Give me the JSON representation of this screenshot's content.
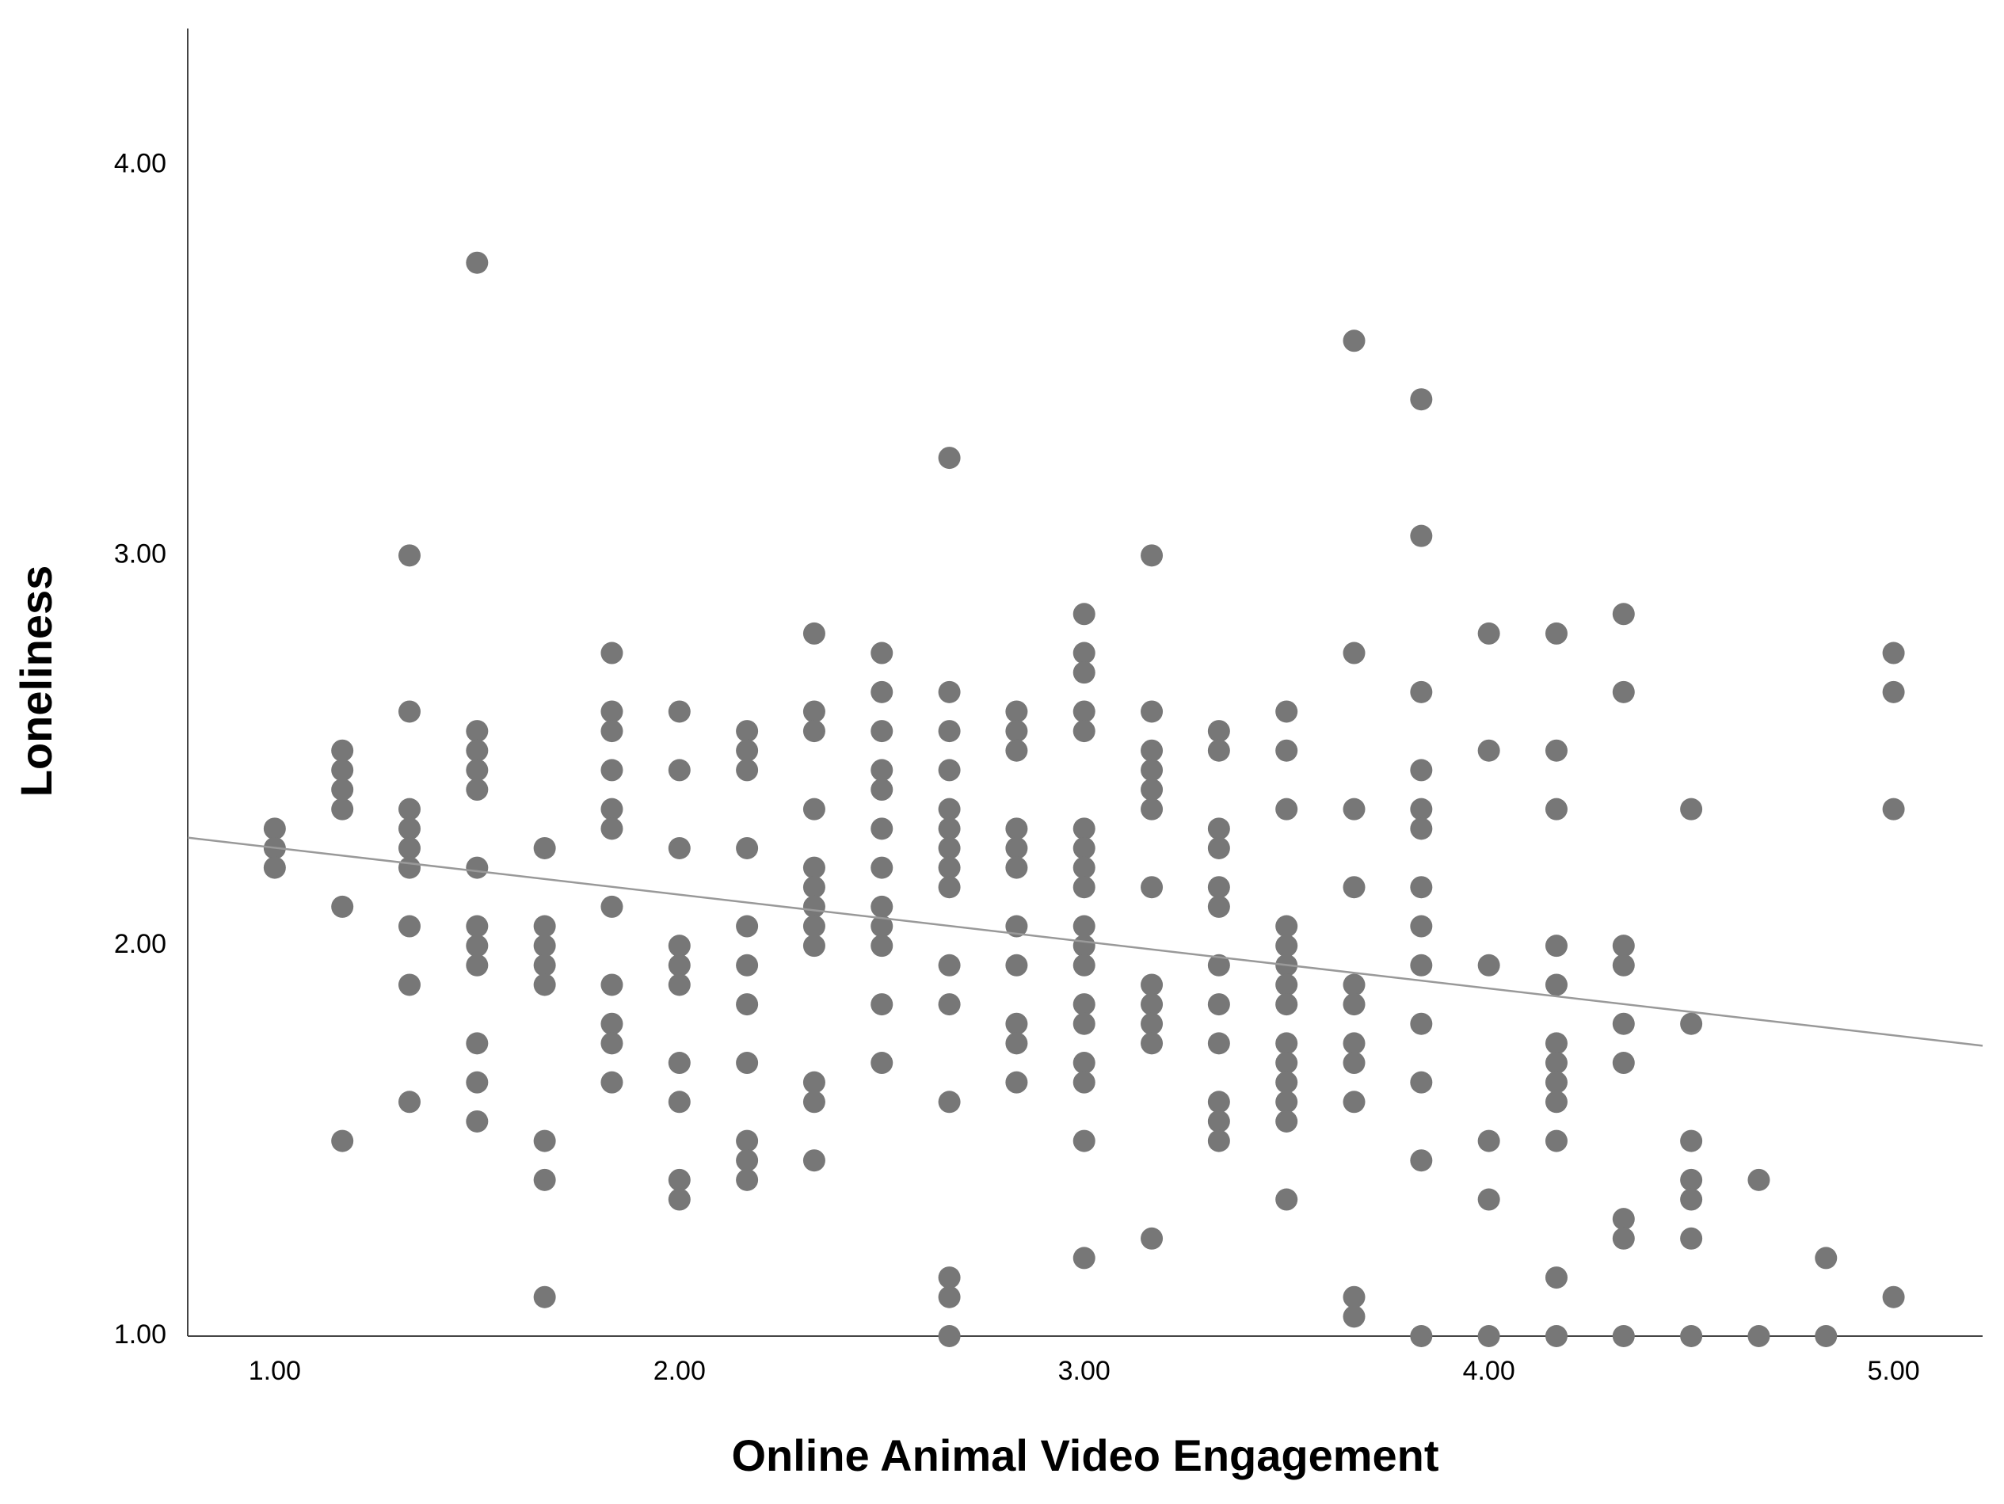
{
  "chart_data": {
    "type": "scatter",
    "xlabel": "Online Animal Video Engagement",
    "ylabel": "Loneliness",
    "color": "#777777",
    "trend_color": "#999999",
    "grid": false,
    "xlim": [
      0.785,
      5.22
    ],
    "ylim": [
      1,
      4.35
    ],
    "xticks": [
      {
        "value": 1,
        "label": "1.00"
      },
      {
        "value": 2,
        "label": "2.00"
      },
      {
        "value": 3,
        "label": "3.00"
      },
      {
        "value": 4,
        "label": "4.00"
      },
      {
        "value": 5,
        "label": "5.00"
      }
    ],
    "yticks": [
      {
        "value": 1,
        "label": "1.00"
      },
      {
        "value": 2,
        "label": "2.00"
      },
      {
        "value": 3,
        "label": "3.00"
      },
      {
        "value": 4,
        "label": "4.00"
      }
    ],
    "trend_line": {
      "x": [
        0.785,
        5.22
      ],
      "y": [
        2.277,
        1.744
      ]
    },
    "x": [
      1,
      1,
      1,
      1.167,
      1.167,
      1.167,
      1.167,
      1.167,
      1.167,
      1.333,
      1.333,
      1.333,
      1.333,
      1.333,
      1.333,
      1.333,
      1.333,
      1.333,
      1.5,
      1.5,
      1.5,
      1.5,
      1.5,
      1.5,
      1.5,
      1.5,
      1.5,
      1.5,
      1.5,
      1.5,
      1.667,
      1.667,
      1.667,
      1.667,
      1.667,
      1.667,
      1.667,
      1.667,
      1.833,
      1.833,
      1.833,
      1.833,
      1.833,
      1.833,
      1.833,
      1.833,
      1.833,
      1.833,
      1.833,
      2,
      2,
      2,
      2,
      2,
      2,
      2,
      2,
      2,
      2,
      2.167,
      2.167,
      2.167,
      2.167,
      2.167,
      2.167,
      2.167,
      2.167,
      2.167,
      2.167,
      2.167,
      2.333,
      2.333,
      2.333,
      2.333,
      2.333,
      2.333,
      2.333,
      2.333,
      2.333,
      2.333,
      2.333,
      2.333,
      2.5,
      2.5,
      2.5,
      2.5,
      2.5,
      2.5,
      2.5,
      2.5,
      2.5,
      2.5,
      2.5,
      2.5,
      2.667,
      2.667,
      2.667,
      2.667,
      2.667,
      2.667,
      2.667,
      2.667,
      2.667,
      2.667,
      2.667,
      2.667,
      2.667,
      2.667,
      2.667,
      2.833,
      2.833,
      2.833,
      2.833,
      2.833,
      2.833,
      2.833,
      2.833,
      2.833,
      2.833,
      2.833,
      3,
      3,
      3,
      3,
      3,
      3,
      3,
      3,
      3,
      3,
      3,
      3,
      3,
      3,
      3,
      3,
      3,
      3,
      3.167,
      3.167,
      3.167,
      3.167,
      3.167,
      3.167,
      3.167,
      3.167,
      3.167,
      3.167,
      3.167,
      3.167,
      3.333,
      3.333,
      3.333,
      3.333,
      3.333,
      3.333,
      3.333,
      3.333,
      3.333,
      3.333,
      3.333,
      3.333,
      3.5,
      3.5,
      3.5,
      3.5,
      3.5,
      3.5,
      3.5,
      3.5,
      3.5,
      3.5,
      3.5,
      3.5,
      3.5,
      3.5,
      3.667,
      3.667,
      3.667,
      3.667,
      3.667,
      3.667,
      3.667,
      3.667,
      3.667,
      3.667,
      3.667,
      3.833,
      3.833,
      3.833,
      3.833,
      3.833,
      3.833,
      3.833,
      3.833,
      3.833,
      3.833,
      3.833,
      3.833,
      3.833,
      4,
      4,
      4,
      4,
      4,
      4,
      4.167,
      4.167,
      4.167,
      4.167,
      4.167,
      4.167,
      4.167,
      4.167,
      4.167,
      4.167,
      4.167,
      4.167,
      4.333,
      4.333,
      4.333,
      4.333,
      4.333,
      4.333,
      4.333,
      4.333,
      4.333,
      4.5,
      4.5,
      4.5,
      4.5,
      4.5,
      4.5,
      4.5,
      4.667,
      4.667,
      4.833,
      4.833,
      5,
      5,
      5,
      5
    ],
    "values": [
      2.3,
      2.25,
      2.2,
      2.5,
      2.45,
      2.4,
      2.35,
      2.1,
      1.5,
      3,
      2.6,
      2.35,
      2.3,
      2.25,
      2.2,
      2.05,
      1.9,
      1.6,
      3.75,
      2.55,
      2.5,
      2.45,
      2.4,
      2.2,
      2.05,
      2,
      1.95,
      1.75,
      1.65,
      1.55,
      2.25,
      2.05,
      2,
      1.95,
      1.9,
      1.5,
      1.4,
      1.1,
      2.75,
      2.6,
      2.55,
      2.45,
      2.35,
      2.3,
      2.1,
      1.9,
      1.8,
      1.75,
      1.65,
      2.6,
      2.45,
      2.25,
      2,
      1.95,
      1.9,
      1.7,
      1.6,
      1.4,
      1.35,
      2.55,
      2.5,
      2.45,
      2.25,
      2.05,
      1.95,
      1.85,
      1.7,
      1.5,
      1.45,
      1.4,
      2.8,
      2.6,
      2.55,
      2.35,
      2.2,
      2.15,
      2.1,
      2.05,
      2,
      1.65,
      1.6,
      1.45,
      2.75,
      2.65,
      2.55,
      2.45,
      2.4,
      2.3,
      2.2,
      2.1,
      2.05,
      2,
      1.85,
      1.7,
      3.25,
      2.65,
      2.55,
      2.45,
      2.35,
      2.3,
      2.25,
      2.2,
      2.15,
      1.95,
      1.85,
      1.6,
      1.15,
      1.1,
      1,
      2.6,
      2.55,
      2.5,
      2.3,
      2.25,
      2.2,
      2.05,
      1.95,
      1.8,
      1.75,
      1.65,
      2.85,
      2.75,
      2.7,
      2.6,
      2.55,
      2.3,
      2.25,
      2.2,
      2.15,
      2.05,
      2,
      1.95,
      1.85,
      1.8,
      1.7,
      1.65,
      1.5,
      1.2,
      3,
      2.6,
      2.5,
      2.45,
      2.4,
      2.35,
      2.15,
      1.9,
      1.85,
      1.8,
      1.75,
      1.25,
      2.55,
      2.5,
      2.3,
      2.25,
      2.15,
      2.1,
      1.95,
      1.85,
      1.75,
      1.6,
      1.55,
      1.5,
      2.6,
      2.5,
      2.35,
      2.05,
      2,
      1.95,
      1.9,
      1.85,
      1.75,
      1.7,
      1.65,
      1.6,
      1.55,
      1.35,
      3.55,
      2.75,
      2.35,
      2.15,
      1.9,
      1.85,
      1.75,
      1.7,
      1.6,
      1.1,
      1.05,
      3.4,
      3.05,
      2.65,
      2.45,
      2.35,
      2.3,
      2.15,
      2.05,
      1.95,
      1.8,
      1.65,
      1.45,
      1,
      2.8,
      2.5,
      1.95,
      1.5,
      1.35,
      1,
      2.8,
      2.5,
      2.35,
      2,
      1.9,
      1.75,
      1.7,
      1.65,
      1.6,
      1.5,
      1.15,
      1,
      2.85,
      2.65,
      2,
      1.95,
      1.8,
      1.7,
      1.3,
      1.25,
      1,
      2.35,
      1.8,
      1.5,
      1.4,
      1.35,
      1.25,
      1,
      1.4,
      1,
      1.2,
      1,
      2.75,
      2.65,
      2.35,
      1.1
    ]
  }
}
